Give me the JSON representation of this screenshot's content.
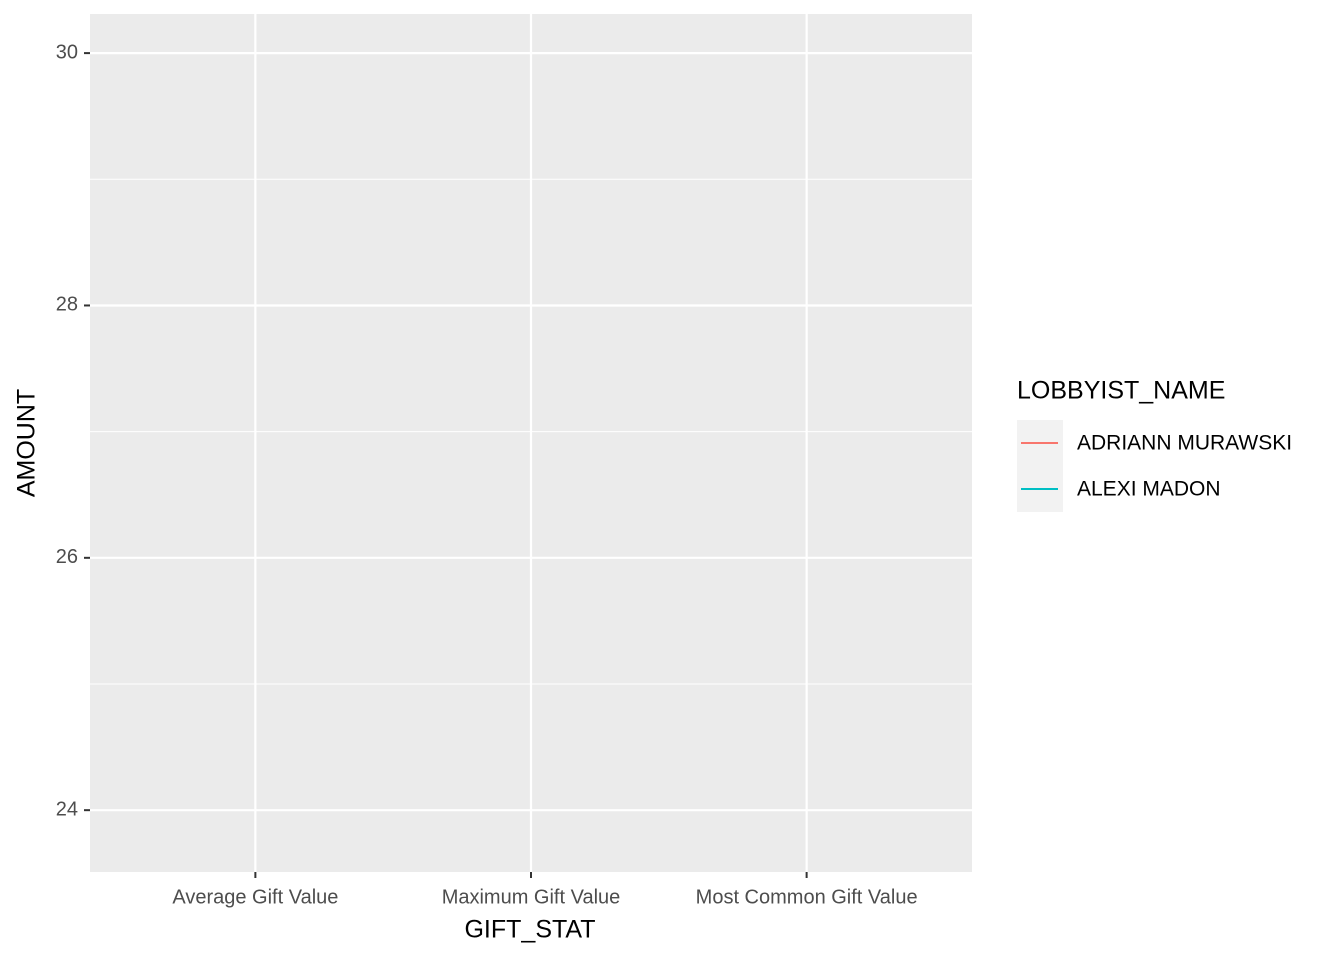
{
  "chart_data": {
    "type": "line",
    "x_label": "GIFT_STAT",
    "y_label": "AMOUNT",
    "legend_title": "LOBBYIST_NAME",
    "categories": [
      "Average Gift Value",
      "Maximum Gift Value",
      "Most Common Gift Value"
    ],
    "series": [
      {
        "name": "ADRIANN MURAWSKI",
        "color": "#F8766D",
        "values": [
          null,
          null,
          null
        ]
      },
      {
        "name": "ALEXI MADON",
        "color": "#00BFC4",
        "values": [
          null,
          null,
          null
        ]
      }
    ],
    "ylim": [
      23.51,
      30.31
    ],
    "yticks": [
      24,
      26,
      28,
      30
    ],
    "grid": true,
    "legend": "right"
  }
}
